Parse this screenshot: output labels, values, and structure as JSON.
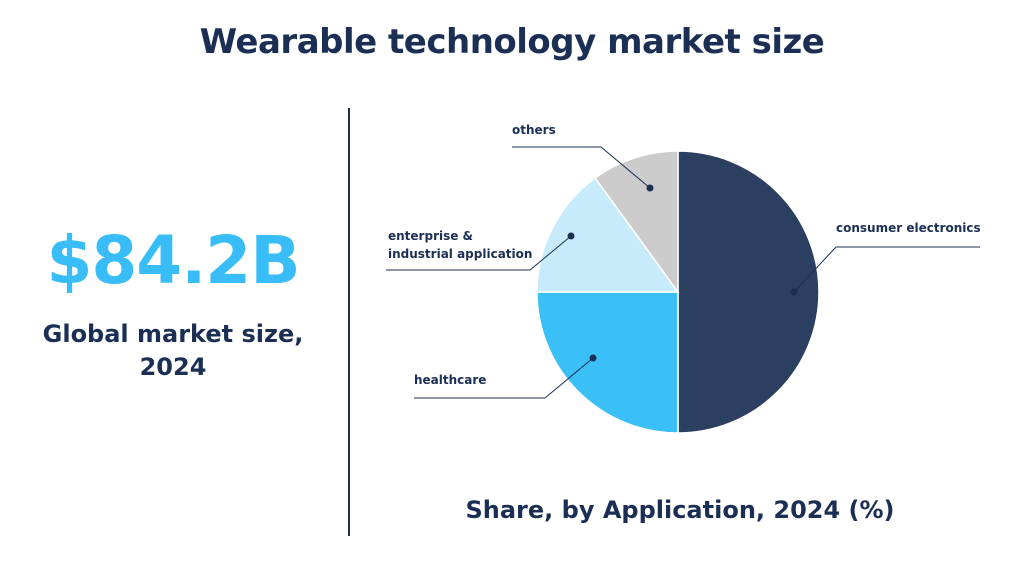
{
  "title": "Wearable technology market size",
  "market_size": {
    "value": "$84.2B",
    "caption_line1": "Global market size,",
    "caption_line2": "2024"
  },
  "chart_caption": "Share, by Application, 2024 (%)",
  "colors": {
    "navy": "#2b3f60",
    "blue": "#3bbff7",
    "light_blue": "#c8ebfb",
    "gray": "#cccccc",
    "text": "#1b2f55",
    "accent": "#38bdf8"
  },
  "chart_data": {
    "type": "pie",
    "title": "Share, by Application, 2024 (%)",
    "slices": [
      {
        "name": "consumer electronics",
        "value": 50,
        "color": "#2b3f60"
      },
      {
        "name": "healthcare",
        "value": 25,
        "color": "#3bbff7"
      },
      {
        "name": "enterprise & industrial application",
        "label_lines": [
          "enterprise &",
          "industrial application"
        ],
        "value": 15,
        "color": "#c8ebfb"
      },
      {
        "name": "others",
        "value": 10,
        "color": "#cccccc"
      }
    ]
  }
}
